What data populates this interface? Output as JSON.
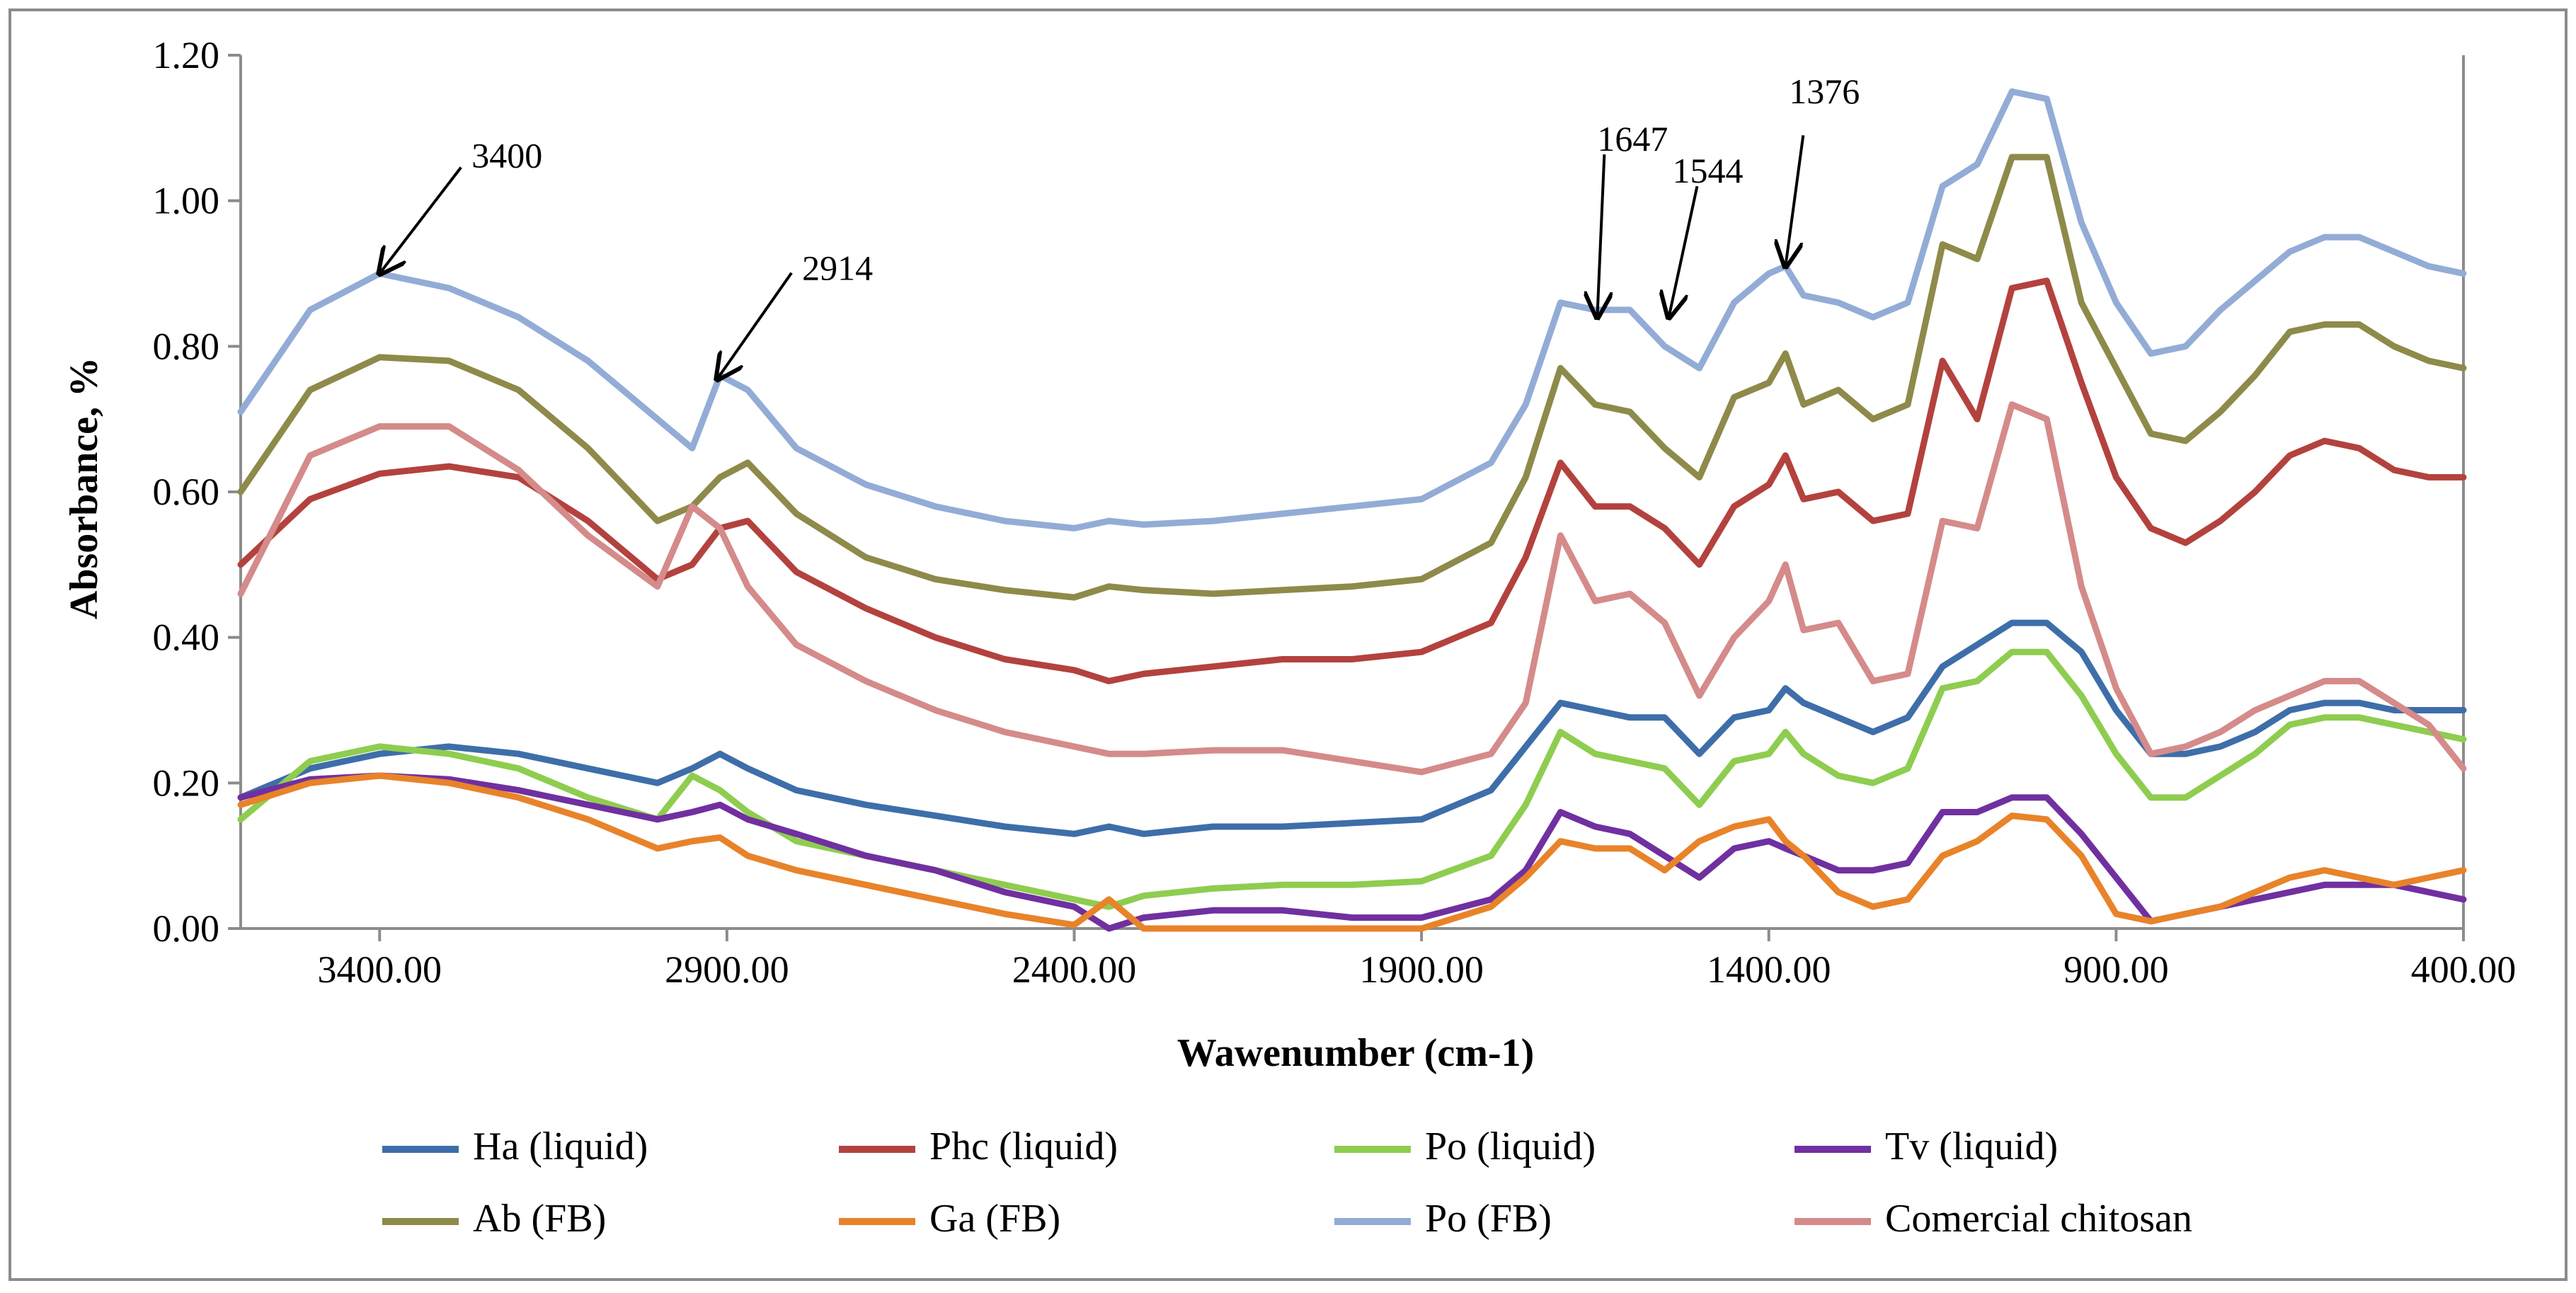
{
  "chart_data": {
    "type": "line",
    "title": "",
    "xlabel": "Wawenumber (cm-1)",
    "ylabel": "Absorbance, %",
    "xlim": [
      3600,
      400
    ],
    "ylim": [
      0,
      1.2
    ],
    "x_ticks": [
      3400,
      2900,
      2400,
      1900,
      1400,
      900,
      400
    ],
    "x_tick_labels": [
      "3400.00",
      "2900.00",
      "2400.00",
      "1900.00",
      "1400.00",
      "900.00",
      "400.00"
    ],
    "y_ticks": [
      0,
      0.2,
      0.4,
      0.6,
      0.8,
      1.0,
      1.2
    ],
    "y_tick_labels": [
      "0.00",
      "0.20",
      "0.40",
      "0.60",
      "0.80",
      "1.00",
      "1.20"
    ],
    "grid": false,
    "legend_position": "bottom",
    "x": [
      3600,
      3500,
      3400,
      3300,
      3200,
      3100,
      3000,
      2950,
      2910,
      2870,
      2800,
      2700,
      2600,
      2500,
      2400,
      2350,
      2300,
      2200,
      2100,
      2000,
      1900,
      1800,
      1750,
      1700,
      1650,
      1600,
      1550,
      1500,
      1450,
      1400,
      1376,
      1350,
      1300,
      1250,
      1200,
      1150,
      1100,
      1050,
      1000,
      950,
      900,
      850,
      800,
      750,
      700,
      650,
      600,
      550,
      500,
      450,
      400
    ],
    "series": [
      {
        "name": "Ha (liquid)",
        "color": "#3e6ea9",
        "values": [
          0.18,
          0.22,
          0.24,
          0.25,
          0.24,
          0.22,
          0.2,
          0.22,
          0.24,
          0.22,
          0.19,
          0.17,
          0.155,
          0.14,
          0.13,
          0.14,
          0.13,
          0.14,
          0.14,
          0.145,
          0.15,
          0.19,
          0.25,
          0.31,
          0.3,
          0.29,
          0.29,
          0.24,
          0.29,
          0.3,
          0.33,
          0.31,
          0.29,
          0.27,
          0.29,
          0.36,
          0.39,
          0.42,
          0.42,
          0.38,
          0.3,
          0.24,
          0.24,
          0.25,
          0.27,
          0.3,
          0.31,
          0.31,
          0.3,
          0.3,
          0.3
        ]
      },
      {
        "name": "Phc (liquid)",
        "color": "#b3423e",
        "values": [
          0.5,
          0.59,
          0.625,
          0.635,
          0.62,
          0.56,
          0.48,
          0.5,
          0.55,
          0.56,
          0.49,
          0.44,
          0.4,
          0.37,
          0.355,
          0.34,
          0.35,
          0.36,
          0.37,
          0.37,
          0.38,
          0.42,
          0.51,
          0.64,
          0.58,
          0.58,
          0.55,
          0.5,
          0.58,
          0.61,
          0.65,
          0.59,
          0.6,
          0.56,
          0.57,
          0.78,
          0.7,
          0.88,
          0.89,
          0.75,
          0.62,
          0.55,
          0.53,
          0.56,
          0.6,
          0.65,
          0.67,
          0.66,
          0.63,
          0.62,
          0.62
        ]
      },
      {
        "name": "Po (liquid)",
        "color": "#8ecd4f",
        "values": [
          0.15,
          0.23,
          0.25,
          0.24,
          0.22,
          0.18,
          0.15,
          0.21,
          0.19,
          0.16,
          0.12,
          0.1,
          0.08,
          0.06,
          0.04,
          0.03,
          0.045,
          0.055,
          0.06,
          0.06,
          0.065,
          0.1,
          0.17,
          0.27,
          0.24,
          0.23,
          0.22,
          0.17,
          0.23,
          0.24,
          0.27,
          0.24,
          0.21,
          0.2,
          0.22,
          0.33,
          0.34,
          0.38,
          0.38,
          0.32,
          0.24,
          0.18,
          0.18,
          0.21,
          0.24,
          0.28,
          0.29,
          0.29,
          0.28,
          0.27,
          0.26
        ]
      },
      {
        "name": "Tv (liquid)",
        "color": "#7030a0",
        "values": [
          0.18,
          0.205,
          0.21,
          0.205,
          0.19,
          0.17,
          0.15,
          0.16,
          0.17,
          0.15,
          0.13,
          0.1,
          0.08,
          0.05,
          0.03,
          0.0,
          0.015,
          0.025,
          0.025,
          0.015,
          0.015,
          0.04,
          0.08,
          0.16,
          0.14,
          0.13,
          0.1,
          0.07,
          0.11,
          0.12,
          0.11,
          0.1,
          0.08,
          0.08,
          0.09,
          0.16,
          0.16,
          0.18,
          0.18,
          0.13,
          0.07,
          0.01,
          0.02,
          0.03,
          0.04,
          0.05,
          0.06,
          0.06,
          0.06,
          0.05,
          0.04
        ]
      },
      {
        "name": "Ab (FB)",
        "color": "#8e8a4a",
        "values": [
          0.6,
          0.74,
          0.785,
          0.78,
          0.74,
          0.66,
          0.56,
          0.58,
          0.62,
          0.64,
          0.57,
          0.51,
          0.48,
          0.465,
          0.455,
          0.47,
          0.465,
          0.46,
          0.465,
          0.47,
          0.48,
          0.53,
          0.62,
          0.77,
          0.72,
          0.71,
          0.66,
          0.62,
          0.73,
          0.75,
          0.79,
          0.72,
          0.74,
          0.7,
          0.72,
          0.94,
          0.92,
          1.06,
          1.06,
          0.86,
          0.77,
          0.68,
          0.67,
          0.71,
          0.76,
          0.82,
          0.83,
          0.83,
          0.8,
          0.78,
          0.77
        ]
      },
      {
        "name": "Ga (FB)",
        "color": "#e8832a",
        "values": [
          0.17,
          0.2,
          0.21,
          0.2,
          0.18,
          0.15,
          0.11,
          0.12,
          0.125,
          0.1,
          0.08,
          0.06,
          0.04,
          0.02,
          0.005,
          0.04,
          0.0,
          0.0,
          0.0,
          0.0,
          0.0,
          0.03,
          0.07,
          0.12,
          0.11,
          0.11,
          0.08,
          0.12,
          0.14,
          0.15,
          0.12,
          0.1,
          0.05,
          0.03,
          0.04,
          0.1,
          0.12,
          0.155,
          0.15,
          0.1,
          0.02,
          0.01,
          0.02,
          0.03,
          0.05,
          0.07,
          0.08,
          0.07,
          0.06,
          0.07,
          0.08
        ]
      },
      {
        "name": "Po (FB)",
        "color": "#93acd6",
        "values": [
          0.71,
          0.85,
          0.9,
          0.88,
          0.84,
          0.78,
          0.7,
          0.66,
          0.76,
          0.74,
          0.66,
          0.61,
          0.58,
          0.56,
          0.55,
          0.56,
          0.555,
          0.56,
          0.57,
          0.58,
          0.59,
          0.64,
          0.72,
          0.86,
          0.85,
          0.85,
          0.8,
          0.77,
          0.86,
          0.9,
          0.91,
          0.87,
          0.86,
          0.84,
          0.86,
          1.02,
          1.05,
          1.15,
          1.14,
          0.97,
          0.86,
          0.79,
          0.8,
          0.85,
          0.89,
          0.93,
          0.95,
          0.95,
          0.93,
          0.91,
          0.9
        ]
      },
      {
        "name": "Comercial chitosan",
        "color": "#d48b8a",
        "values": [
          0.46,
          0.65,
          0.69,
          0.69,
          0.63,
          0.54,
          0.47,
          0.58,
          0.55,
          0.47,
          0.39,
          0.34,
          0.3,
          0.27,
          0.25,
          0.24,
          0.24,
          0.245,
          0.245,
          0.23,
          0.215,
          0.24,
          0.31,
          0.54,
          0.45,
          0.46,
          0.42,
          0.32,
          0.4,
          0.45,
          0.5,
          0.41,
          0.42,
          0.34,
          0.35,
          0.56,
          0.55,
          0.72,
          0.7,
          0.47,
          0.33,
          0.24,
          0.25,
          0.27,
          0.3,
          0.32,
          0.34,
          0.34,
          0.31,
          0.28,
          0.22
        ]
      }
    ],
    "annotations": [
      {
        "label": "3400",
        "x": 3400,
        "y": 0.9
      },
      {
        "label": "2914",
        "x": 2914,
        "y": 0.755
      },
      {
        "label": "1647",
        "x": 1647,
        "y": 0.84
      },
      {
        "label": "1544",
        "x": 1544,
        "y": 0.84
      },
      {
        "label": "1376",
        "x": 1376,
        "y": 0.91
      }
    ]
  }
}
